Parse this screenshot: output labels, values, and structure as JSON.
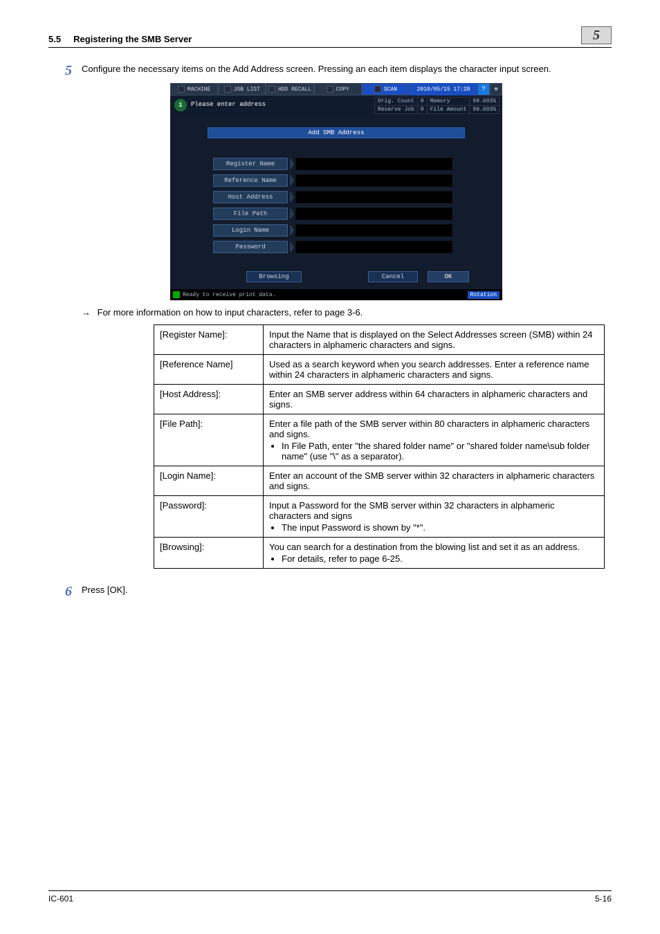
{
  "header": {
    "section_no": "5.5",
    "section_title": "Registering the SMB Server",
    "chapter_num": "5"
  },
  "step5": {
    "num": "5",
    "text": "Configure the necessary items on the Add Address screen.  Pressing an each item displays the character input screen."
  },
  "shot": {
    "tabs": {
      "machine": "MACHINE",
      "joblist": "JOB LIST",
      "hdd": "HDD RECALL",
      "copy": "COPY",
      "scan": "SCAN"
    },
    "timestamp": "2010/05/15 17:28",
    "please": "Please enter address",
    "status": {
      "orig_lbl": "Orig. Count",
      "orig_v": "0",
      "mem_lbl": "Memory",
      "mem_v": "99.603%",
      "res_lbl": "Reserve Job",
      "res_v": "0",
      "file_lbl": "File Amount",
      "file_v": "99.603%"
    },
    "panel_title": "Add SMB Address",
    "fields": {
      "register": "Register Name",
      "reference": "Reference Name",
      "host": "Host Address",
      "filepath": "File Path",
      "login": "Login Name",
      "password": "Password"
    },
    "buttons": {
      "browse": "Browsing",
      "cancel": "Cancel",
      "ok": "OK"
    },
    "footer": "Ready to receive print data.",
    "rotation": "Rotation"
  },
  "arrow": "For more information on how to input characters, refer to page 3-6.",
  "spec": {
    "r1_k": "[Register Name]:",
    "r1_v": "Input the Name that is displayed on the Select Addresses screen (SMB) within 24 characters in alphameric characters and signs.",
    "r2_k": "[Reference Name]",
    "r2_v": "Used as a search keyword when you search addresses.  Enter a reference name within 24 characters in alphameric characters and signs.",
    "r3_k": "[Host Address]:",
    "r3_v": "Enter an SMB server address within 64 characters in alphameric characters and signs.",
    "r4_k": "[File Path]:",
    "r4_v1": "Enter a file path of the SMB server within 80 characters in alphameric characters and signs.",
    "r4_b1": "In File Path, enter \"the shared folder name\" or \"shared folder name\\sub folder name\" (use \"\\\" as a separator).",
    "r5_k": "[Login Name]:",
    "r5_v": "Enter an account of the SMB server within 32 characters in alphameric characters and signs.",
    "r6_k": "[Password]:",
    "r6_v1": "Input a Password for the SMB server within 32 characters in alphameric characters and signs",
    "r6_b1": "The input Password is shown by \"*\".",
    "r7_k": "[Browsing]:",
    "r7_v1": "You can search for a destination from the blowing list and set it as an address.",
    "r7_b1": "For details, refer to page 6-25."
  },
  "step6": {
    "num": "6",
    "text": "Press [OK]."
  },
  "footer": {
    "left": "IC-601",
    "right": "5-16"
  }
}
